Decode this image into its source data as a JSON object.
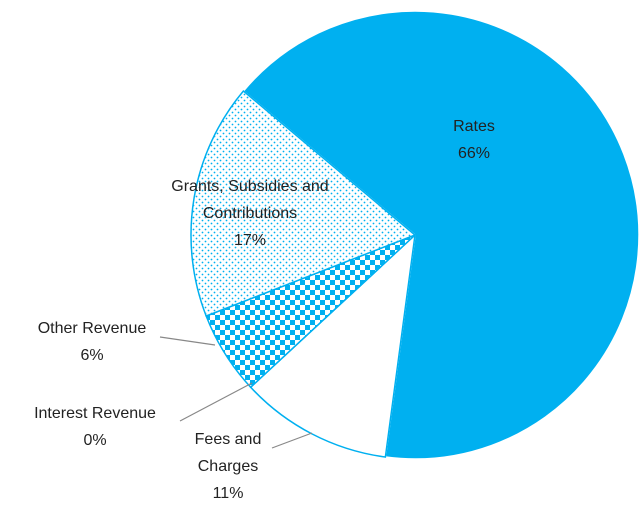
{
  "chart_data": {
    "type": "pie",
    "categories": [
      "Rates",
      "Fees and Charges",
      "Interest Revenue",
      "Other Revenue",
      "Grants, Subsidies and Contributions"
    ],
    "values": [
      66,
      11,
      0,
      6,
      17
    ],
    "value_labels": [
      "66%",
      "11%",
      "0%",
      "6%",
      "17%"
    ],
    "colors": [
      "#00b0f0",
      "#ffffff",
      "#00b0f0",
      "#00b0f0",
      "#00b0f0"
    ],
    "patterns": [
      "solid",
      "none",
      "none",
      "checker",
      "dots"
    ]
  }
}
